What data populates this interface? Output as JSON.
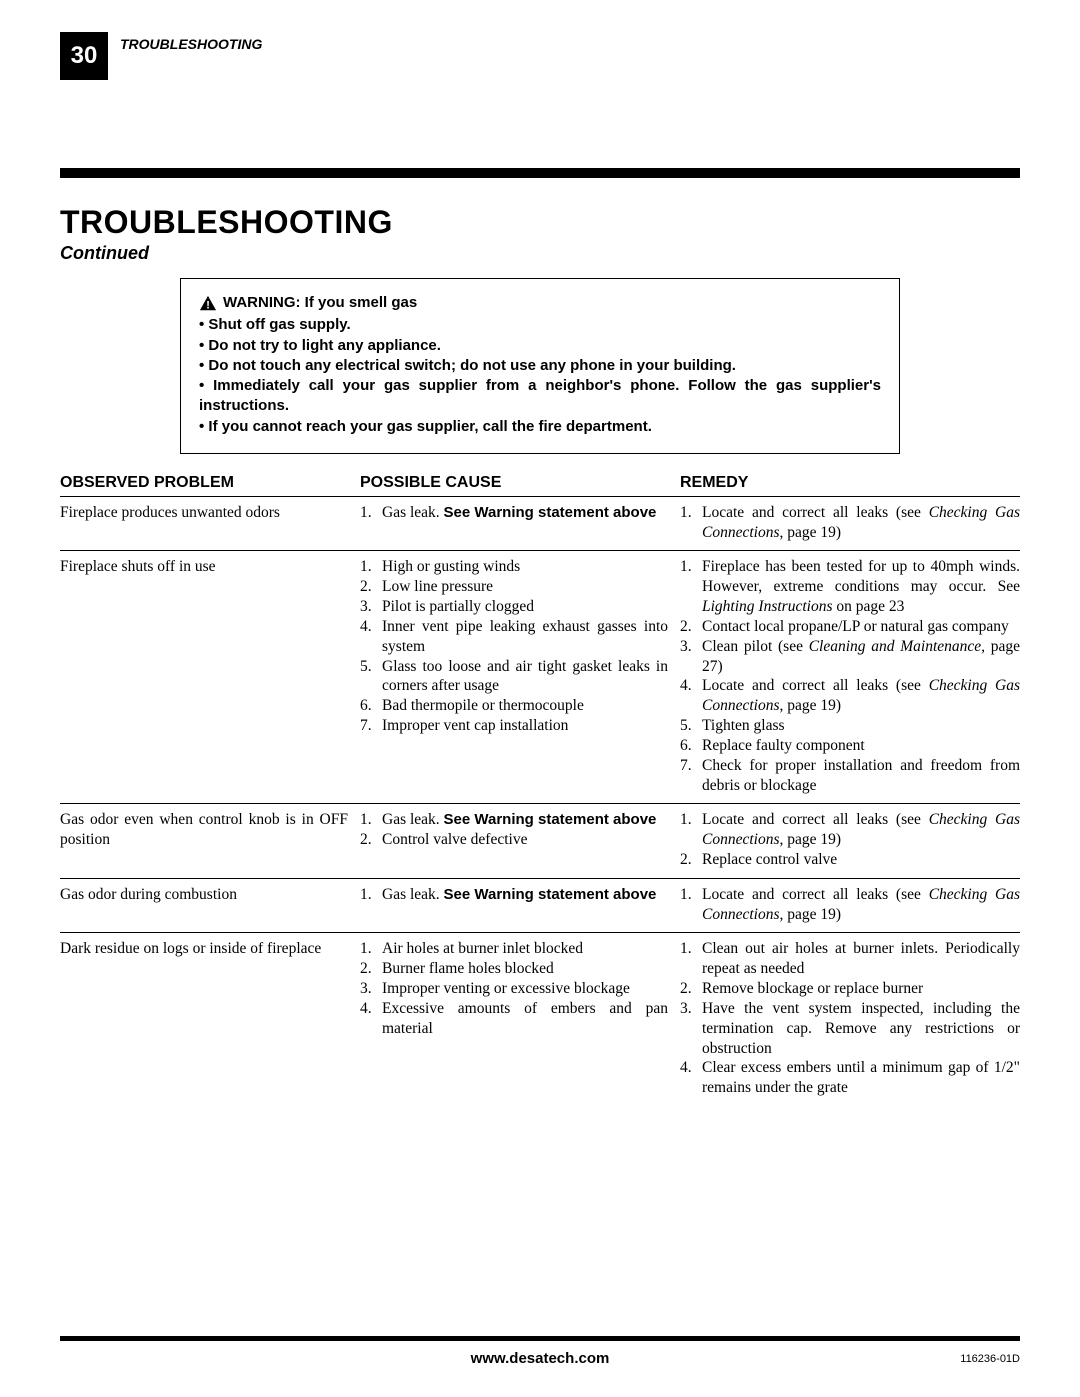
{
  "page_number": "30",
  "header_mini": "TROUBLESHOOTING",
  "title": "TROUBLESHOOTING",
  "continued": "Continued",
  "warning": {
    "heading": "WARNING: If you smell gas",
    "bullets": [
      "Shut off gas supply.",
      "Do not try to light any appliance.",
      "Do not touch any electrical switch; do not use any phone in your building.",
      "Immediately call your gas supplier from a neighbor's phone. Follow the gas supplier's instructions.",
      "If you cannot reach your gas supplier, call the fire department."
    ]
  },
  "columns": {
    "problem": "OBSERVED PROBLEM",
    "cause": "POSSIBLE CAUSE",
    "remedy": "REMEDY"
  },
  "rows": [
    {
      "problem": "Fireplace produces unwanted odors",
      "causes": [
        [
          {
            "t": "Gas leak. "
          },
          {
            "t": "See Warning statement above",
            "b": true
          }
        ]
      ],
      "remedies": [
        [
          {
            "t": "Locate and correct all leaks (see "
          },
          {
            "t": "Checking Gas Connections",
            "i": true
          },
          {
            "t": ", page 19)"
          }
        ]
      ]
    },
    {
      "problem": "Fireplace shuts off in use",
      "causes": [
        [
          {
            "t": "High or gusting winds"
          }
        ],
        [
          {
            "t": "Low line pressure"
          }
        ],
        [
          {
            "t": "Pilot is partially clogged"
          }
        ],
        [
          {
            "t": "Inner vent pipe leaking exhaust gasses into system"
          }
        ],
        [
          {
            "t": "Glass too loose and air tight gasket leaks in corners after usage"
          }
        ],
        [
          {
            "t": "Bad thermopile or thermocouple"
          }
        ],
        [
          {
            "t": "Improper vent cap installation"
          }
        ]
      ],
      "remedies": [
        [
          {
            "t": "Fireplace has been tested for up to 40mph winds. However, extreme conditions may occur. See "
          },
          {
            "t": "Lighting Instructions",
            "i": true
          },
          {
            "t": " on page 23"
          }
        ],
        [
          {
            "t": "Contact local propane/LP or natural gas company"
          }
        ],
        [
          {
            "t": "Clean pilot (see "
          },
          {
            "t": "Cleaning and Maintenance,",
            "i": true
          },
          {
            "t": " page 27)"
          }
        ],
        [
          {
            "t": "Locate and correct all leaks (see "
          },
          {
            "t": "Checking Gas Connections",
            "i": true
          },
          {
            "t": ", page 19)"
          }
        ],
        [
          {
            "t": "Tighten glass"
          }
        ],
        [
          {
            "t": "Replace faulty component"
          }
        ],
        [
          {
            "t": "Check for proper installation and freedom from debris or blockage"
          }
        ]
      ]
    },
    {
      "problem": "Gas odor even when control knob is in OFF position",
      "causes": [
        [
          {
            "t": "Gas leak. "
          },
          {
            "t": "See Warning statement above",
            "b": true
          }
        ],
        [
          {
            "t": "Control valve defective"
          }
        ]
      ],
      "remedies": [
        [
          {
            "t": "Locate and correct all leaks (see "
          },
          {
            "t": "Checking Gas Connections",
            "i": true
          },
          {
            "t": ", page 19)"
          }
        ],
        [
          {
            "t": "Replace control valve"
          }
        ]
      ]
    },
    {
      "problem": "Gas odor during combustion",
      "causes": [
        [
          {
            "t": "Gas leak. "
          },
          {
            "t": "See Warning statement above",
            "b": true
          }
        ]
      ],
      "remedies": [
        [
          {
            "t": "Locate and correct all leaks (see "
          },
          {
            "t": "Checking Gas Connections",
            "i": true
          },
          {
            "t": ", page 19)"
          }
        ]
      ]
    },
    {
      "problem": "Dark residue on logs or inside of fireplace",
      "noborder": true,
      "causes": [
        [
          {
            "t": "Air holes at burner inlet blocked"
          }
        ],
        [
          {
            "t": "Burner flame holes blocked"
          }
        ],
        [
          {
            "t": "Improper venting or excessive blockage"
          }
        ],
        [
          {
            "t": "Excessive amounts of embers and pan material"
          }
        ]
      ],
      "remedies": [
        [
          {
            "t": "Clean out air holes at burner inlets. Periodically repeat as needed"
          }
        ],
        [
          {
            "t": "Remove blockage or replace burner"
          }
        ],
        [
          {
            "t": "Have the vent system inspected, including the termination cap. Remove any restrictions or obstruction"
          }
        ],
        [
          {
            "t": "Clear excess embers until a minimum gap of 1/2\" remains under the grate"
          }
        ]
      ]
    }
  ],
  "footer": {
    "url": "www.desatech.com",
    "doc": "116236-01D"
  }
}
